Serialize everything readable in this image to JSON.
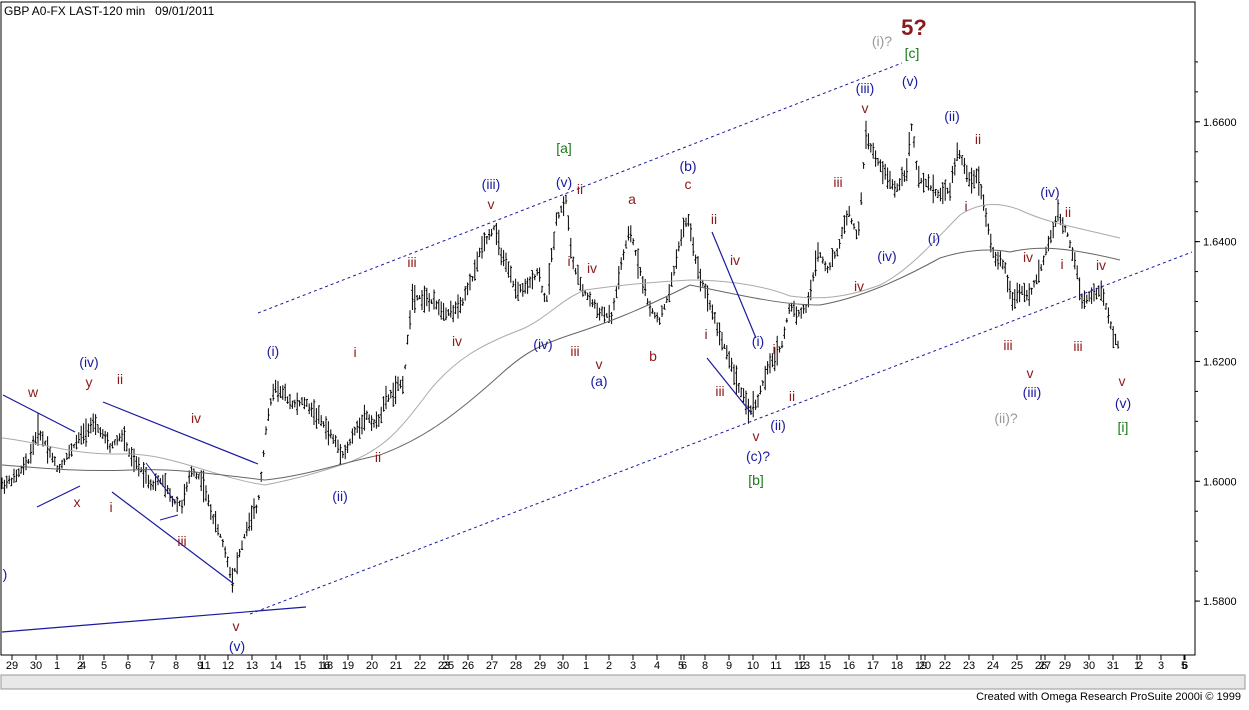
{
  "header": {
    "title": "GBP A0-FX LAST-120 min   09/01/2011"
  },
  "footer": {
    "credit": "Created with Omega Research ProSuite 2000i © 1999"
  },
  "chart_data": {
    "type": "bar",
    "ylim": [
      1.571,
      1.68
    ],
    "y_ticks": [
      1.58,
      1.6,
      1.62,
      1.64,
      1.66
    ],
    "y_tick_labels": [
      "1.5800",
      "1.6000",
      "1.6200",
      "1.6400",
      "1.6600"
    ],
    "x_ticks": [
      "29",
      "30",
      "1",
      "2",
      "4",
      "5",
      "6",
      "7",
      "8",
      "9",
      "11",
      "12",
      "13",
      "14",
      "15",
      "16",
      "18",
      "19",
      "20",
      "21",
      "22",
      "23",
      "25",
      "26",
      "27",
      "28",
      "29",
      "30",
      "1",
      "2",
      "3",
      "4",
      "5",
      "6",
      "8",
      "9",
      "10",
      "11",
      "12",
      "13",
      "15",
      "16",
      "17",
      "18",
      "19",
      "20",
      "22",
      "23",
      "24",
      "25",
      "26",
      "27",
      "29",
      "30",
      "31",
      "1",
      "2",
      "3",
      "5",
      "6"
    ],
    "x_tick_x": [
      12,
      36,
      57,
      80,
      83,
      104,
      128,
      152,
      176,
      200,
      205,
      228,
      252,
      276,
      300,
      324,
      327,
      348,
      372,
      396,
      420,
      444,
      448,
      468,
      492,
      516,
      540,
      563,
      586,
      609,
      633,
      657,
      681,
      684,
      705,
      729,
      753,
      776,
      800,
      804,
      825,
      849,
      873,
      897,
      921,
      925,
      945,
      969,
      993,
      1017,
      1041,
      1045,
      1065,
      1089,
      1113,
      1137,
      1140,
      1161,
      1184,
      1185
    ],
    "wave_labels": [
      {
        "text": "w",
        "color": "#8b1a1a",
        "x": 33,
        "y": 397
      },
      {
        "text": "(iv)",
        "color": "#1a1aa0",
        "x": 89,
        "y": 367
      },
      {
        "text": "y",
        "color": "#8b1a1a",
        "x": 89,
        "y": 387
      },
      {
        "text": "ii",
        "color": "#8b1a1a",
        "x": 120,
        "y": 384
      },
      {
        "text": "x",
        "color": "#8b1a1a",
        "x": 77,
        "y": 507
      },
      {
        "text": "i",
        "color": "#8b1a1a",
        "x": 111,
        "y": 512
      },
      {
        "text": "iv",
        "color": "#8b1a1a",
        "x": 196,
        "y": 423
      },
      {
        "text": "iii",
        "color": "#8b1a1a",
        "x": 182,
        "y": 546
      },
      {
        "text": "v",
        "color": "#8b1a1a",
        "x": 236,
        "y": 631
      },
      {
        "text": "(v)",
        "color": "#1a1aa0",
        "x": 237,
        "y": 651
      },
      {
        "text": ")",
        "color": "#1a1aa0",
        "x": 5,
        "y": 579
      },
      {
        "text": "(i)",
        "color": "#1a1aa0",
        "x": 273,
        "y": 356
      },
      {
        "text": "i",
        "color": "#8b1a1a",
        "x": 355,
        "y": 357
      },
      {
        "text": "(ii)",
        "color": "#1a1aa0",
        "x": 340,
        "y": 501
      },
      {
        "text": "ii",
        "color": "#8b1a1a",
        "x": 378,
        "y": 462
      },
      {
        "text": "iii",
        "color": "#8b1a1a",
        "x": 412,
        "y": 267
      },
      {
        "text": "iv",
        "color": "#8b1a1a",
        "x": 457,
        "y": 346
      },
      {
        "text": "(iii)",
        "color": "#1a1aa0",
        "x": 491,
        "y": 189
      },
      {
        "text": "v",
        "color": "#8b1a1a",
        "x": 491,
        "y": 209
      },
      {
        "text": "(iv)",
        "color": "#1a1aa0",
        "x": 543,
        "y": 349
      },
      {
        "text": "[a]",
        "color": "#1a7a1a",
        "x": 564,
        "y": 153
      },
      {
        "text": "(v)",
        "color": "#1a1aa0",
        "x": 564,
        "y": 187
      },
      {
        "text": "ii",
        "color": "#8b1a1a",
        "x": 580,
        "y": 194
      },
      {
        "text": "i",
        "color": "#8b1a1a",
        "x": 569,
        "y": 266
      },
      {
        "text": "iv",
        "color": "#8b1a1a",
        "x": 592,
        "y": 273
      },
      {
        "text": "iii",
        "color": "#8b1a1a",
        "x": 575,
        "y": 356
      },
      {
        "text": "v",
        "color": "#8b1a1a",
        "x": 599,
        "y": 369
      },
      {
        "text": "(a)",
        "color": "#1a1aa0",
        "x": 599,
        "y": 386
      },
      {
        "text": "a",
        "color": "#8b1a1a",
        "x": 632,
        "y": 204
      },
      {
        "text": "b",
        "color": "#8b1a1a",
        "x": 653,
        "y": 361
      },
      {
        "text": "(b)",
        "color": "#1a1aa0",
        "x": 688,
        "y": 171
      },
      {
        "text": "c",
        "color": "#8b1a1a",
        "x": 688,
        "y": 189
      },
      {
        "text": "ii",
        "color": "#8b1a1a",
        "x": 714,
        "y": 224
      },
      {
        "text": "iv",
        "color": "#8b1a1a",
        "x": 735,
        "y": 265
      },
      {
        "text": "i",
        "color": "#8b1a1a",
        "x": 706,
        "y": 339
      },
      {
        "text": "iii",
        "color": "#8b1a1a",
        "x": 720,
        "y": 396
      },
      {
        "text": "(i)",
        "color": "#1a1aa0",
        "x": 758,
        "y": 346
      },
      {
        "text": "i",
        "color": "#8b1a1a",
        "x": 774,
        "y": 354
      },
      {
        "text": "v",
        "color": "#8b1a1a",
        "x": 756,
        "y": 441
      },
      {
        "text": "(ii)",
        "color": "#1a1aa0",
        "x": 778,
        "y": 430
      },
      {
        "text": "ii",
        "color": "#8b1a1a",
        "x": 792,
        "y": 401
      },
      {
        "text": "(c)?",
        "color": "#1a1aa0",
        "x": 758,
        "y": 461
      },
      {
        "text": "[b]",
        "color": "#1a7a1a",
        "x": 756,
        "y": 485
      },
      {
        "text": "iii",
        "color": "#8b1a1a",
        "x": 838,
        "y": 187
      },
      {
        "text": "iv",
        "color": "#8b1a1a",
        "x": 859,
        "y": 291
      },
      {
        "text": "(iii)",
        "color": "#1a1aa0",
        "x": 865,
        "y": 93
      },
      {
        "text": "v",
        "color": "#8b1a1a",
        "x": 865,
        "y": 113
      },
      {
        "text": "(iv)",
        "color": "#1a1aa0",
        "x": 887,
        "y": 261
      },
      {
        "text": "5?",
        "color": "#8b1a1a",
        "x": 914,
        "y": 35,
        "size": 22
      },
      {
        "text": "(i)?",
        "color": "#999999",
        "x": 882,
        "y": 46
      },
      {
        "text": "[c]",
        "color": "#1a7a1a",
        "x": 912,
        "y": 58
      },
      {
        "text": "(v)",
        "color": "#1a1aa0",
        "x": 910,
        "y": 86
      },
      {
        "text": "(ii)",
        "color": "#1a1aa0",
        "x": 952,
        "y": 121
      },
      {
        "text": "ii",
        "color": "#8b1a1a",
        "x": 978,
        "y": 144
      },
      {
        "text": "(i)",
        "color": "#1a1aa0",
        "x": 934,
        "y": 243
      },
      {
        "text": "i",
        "color": "#8b1a1a",
        "x": 966,
        "y": 211
      },
      {
        "text": "iv",
        "color": "#8b1a1a",
        "x": 1028,
        "y": 262
      },
      {
        "text": "iii",
        "color": "#8b1a1a",
        "x": 1008,
        "y": 350
      },
      {
        "text": "v",
        "color": "#8b1a1a",
        "x": 1030,
        "y": 378
      },
      {
        "text": "(iii)",
        "color": "#1a1aa0",
        "x": 1032,
        "y": 397
      },
      {
        "text": "(ii)?",
        "color": "#999999",
        "x": 1006,
        "y": 423
      },
      {
        "text": "(iv)",
        "color": "#1a1aa0",
        "x": 1050,
        "y": 197
      },
      {
        "text": "ii",
        "color": "#8b1a1a",
        "x": 1068,
        "y": 217
      },
      {
        "text": "i",
        "color": "#8b1a1a",
        "x": 1062,
        "y": 269
      },
      {
        "text": "iv",
        "color": "#8b1a1a",
        "x": 1101,
        "y": 270
      },
      {
        "text": "iii",
        "color": "#8b1a1a",
        "x": 1078,
        "y": 351
      },
      {
        "text": "v",
        "color": "#8b1a1a",
        "x": 1122,
        "y": 386
      },
      {
        "text": "(v)",
        "color": "#1a1aa0",
        "x": 1123,
        "y": 408
      },
      {
        "text": "[i]",
        "color": "#1a7a1a",
        "x": 1123,
        "y": 432
      }
    ]
  }
}
